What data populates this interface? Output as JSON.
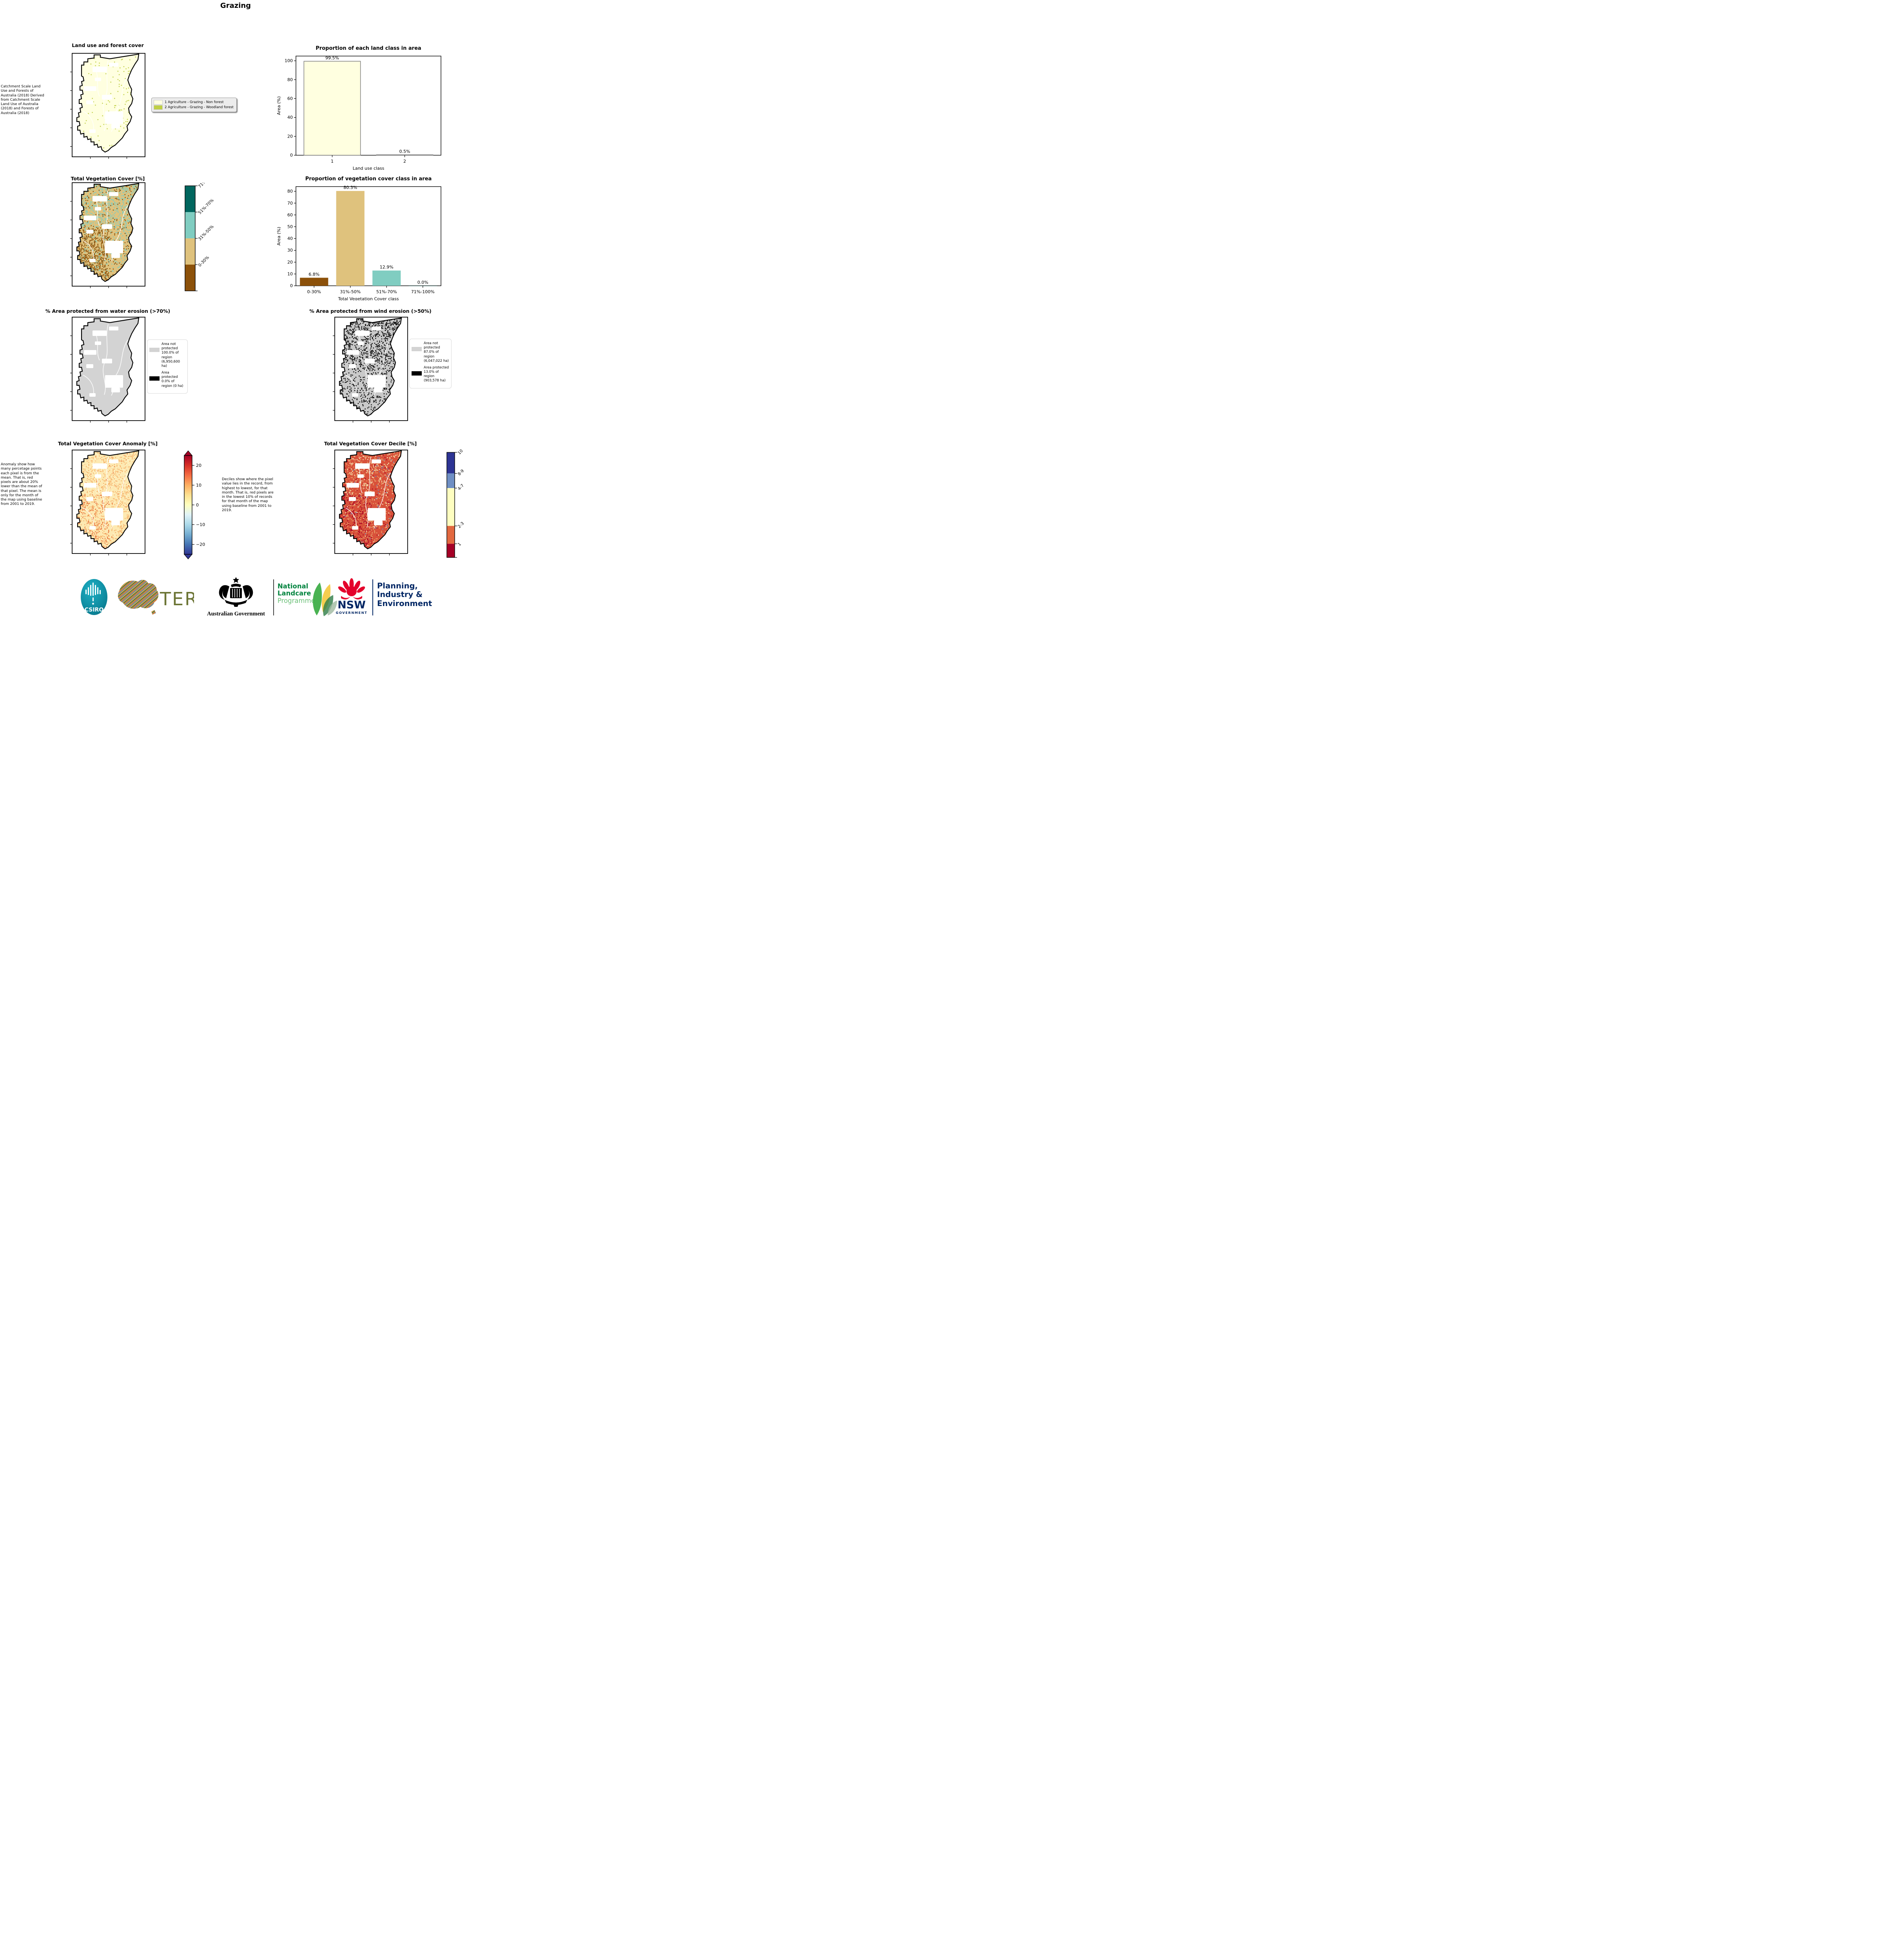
{
  "title": "Grazing",
  "row1": {
    "map_title": "Land use and forest cover",
    "side_note": " Catchment Scale Land Use and Forests of Australia (2018) Derived from Catchment Scale Land Use of Australia (2018) and Forests of Australia (2018)",
    "legend": [
      {
        "label": "1 Agriculture - Grazing - Non forest",
        "color": "#ffffe0"
      },
      {
        "label": "2 Agriculture - Grazing - Woodland forest",
        "color": "#bfcf45"
      }
    ]
  },
  "row2": {
    "map_title": "Total Vegetation Cover [%]",
    "classes": [
      {
        "label": "71%-100%",
        "color": "#01665e"
      },
      {
        "label": "51%-70%",
        "color": "#80cdc1"
      },
      {
        "label": "31%-50%",
        "color": "#dfc27d"
      },
      {
        "label": "0-30%",
        "color": "#8c510a"
      }
    ]
  },
  "row3": {
    "water": {
      "title": "% Area protected from water erosion (>70%)",
      "legend": [
        {
          "label": "Area not protected 100.0% of region (6,950,600 ha)",
          "color": "#d3d3d3"
        },
        {
          "label": "Area protected 0.0% of region (0 ha)",
          "color": "#000000"
        }
      ]
    },
    "wind": {
      "title": "% Area protected from wind erosion (>50%)",
      "legend": [
        {
          "label": "Area not protected 87.0% of region (6,047,022 ha)",
          "color": "#d3d3d3"
        },
        {
          "label": "Area protected 13.0% of region (903,578 ha)",
          "color": "#000000"
        }
      ]
    }
  },
  "row4": {
    "anomaly": {
      "title": "Total Vegetation Cover Anomaly [%]",
      "side_note": "Anomaly show how many percetage points each pixel is from the mean. That is, red pixels are about 20% lower than the mean of that pixel. The mean is only for the month of the map using baseline from 2001 to 2019.",
      "ticks": [
        "20",
        "10",
        "0",
        "−10",
        "−20"
      ],
      "gradient": [
        "#313695",
        "#4575b4",
        "#74add1",
        "#abd9e9",
        "#e0f3f8",
        "#ffffbf",
        "#fee090",
        "#fdae61",
        "#f46d43",
        "#d73027",
        "#a50026"
      ]
    },
    "decile": {
      "title": "Total Vegetation Cover Decile [%]",
      "side_note": "Deciles show where the pixel value lies in the record, from highest to lowest, for that month. That is, red pixels are in the lowest 10% of records for that month of the map using baseline from 2001 to 2019.",
      "classes": [
        {
          "label": "10",
          "color": "#2d3494",
          "frac": 0.2
        },
        {
          "label": "8-9",
          "color": "#6f8fc4",
          "frac": 0.14
        },
        {
          "label": "4-7",
          "color": "#fefec0",
          "frac": 0.36
        },
        {
          "label": "2-3",
          "color": "#e2683f",
          "frac": 0.17
        },
        {
          "label": "1",
          "color": "#a50026",
          "frac": 0.13
        }
      ]
    }
  },
  "chart_data": [
    {
      "type": "bar",
      "title": "Proportion of each land class in area",
      "categories": [
        "1",
        "2"
      ],
      "values": [
        99.5,
        0.5
      ],
      "bar_labels": [
        "99.5%",
        "0.5%"
      ],
      "bar_colors": [
        "#ffffe0",
        "#bfcf45"
      ],
      "bar_edge": "#7f7f7f",
      "xlabel": "Land use class",
      "ylabel": "Area (%)",
      "ylim": [
        0,
        105
      ],
      "yticks": [
        0,
        20,
        40,
        60,
        80,
        100
      ],
      "grid": false,
      "legend_position": "none"
    },
    {
      "type": "bar",
      "title": "Proportion of vegetation cover class in area",
      "categories": [
        "0-30%",
        "31%-50%",
        "51%-70%",
        "71%-100%"
      ],
      "values": [
        6.8,
        80.3,
        12.9,
        0.0
      ],
      "bar_labels": [
        "6.8%",
        "80.3%",
        "12.9%",
        "0.0%"
      ],
      "bar_colors": [
        "#8c510a",
        "#dfc27d",
        "#80cdc1",
        "#01665e"
      ],
      "bar_edge": "none",
      "xlabel": "Total Vegetation Cover class",
      "ylabel": "Area (%)",
      "ylim": [
        0,
        84
      ],
      "yticks": [
        0,
        10,
        20,
        30,
        40,
        50,
        60,
        70,
        80
      ],
      "grid": false,
      "legend_position": "none"
    }
  ],
  "footer": {
    "csiro": "CSIRO",
    "tern": "TERN",
    "aus_gov": "Australian Government",
    "nlp": [
      "National",
      "Landcare",
      "Programme"
    ],
    "nsw": [
      "NSW",
      "GOVERNMENT"
    ],
    "pie": [
      "Planning,",
      "Industry &",
      "Environment"
    ]
  }
}
